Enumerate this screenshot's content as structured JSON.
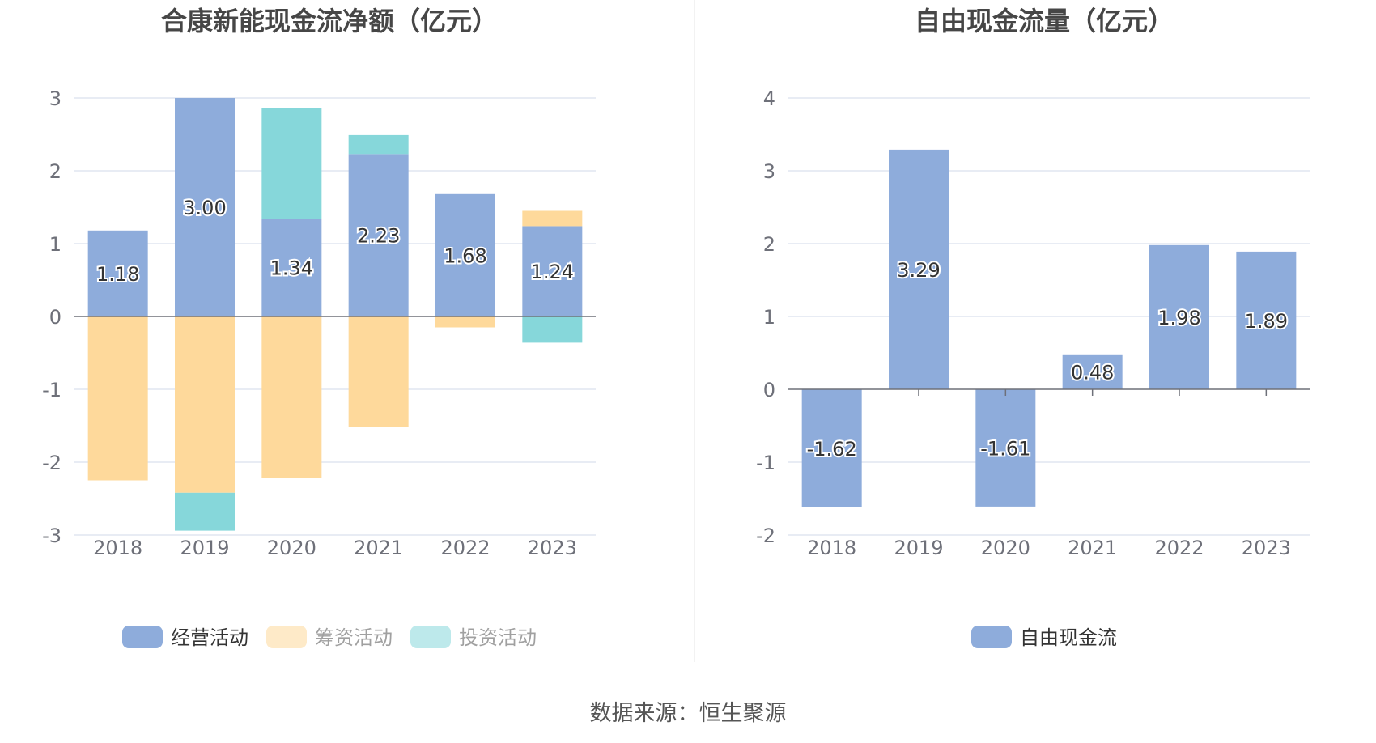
{
  "colors": {
    "operating": "#8eacdb",
    "financing": "#fed99b",
    "investing": "#86d7da",
    "free_cash_flow": "#8eacdb",
    "grid": "#e0e6f1",
    "axis": "#6e7079"
  },
  "footer": {
    "source": "数据来源：恒生聚源"
  },
  "chart_data": [
    {
      "type": "bar",
      "stacked": true,
      "title": "合康新能现金流净额（亿元）",
      "categories": [
        "2018",
        "2019",
        "2020",
        "2021",
        "2022",
        "2023"
      ],
      "ylim": [
        -3,
        3
      ],
      "yticks": [
        -3,
        -2,
        -1,
        0,
        1,
        2,
        3
      ],
      "grid": true,
      "legend_position": "bottom",
      "series": [
        {
          "name": "经营活动",
          "color_key": "operating",
          "values": [
            1.18,
            3.0,
            1.34,
            2.23,
            1.68,
            1.24
          ],
          "show_labels": true
        },
        {
          "name": "筹资活动",
          "color_key": "financing",
          "values": [
            -2.25,
            -2.42,
            -2.22,
            -1.52,
            -0.15,
            0.21
          ],
          "show_labels": false
        },
        {
          "name": "投资活动",
          "color_key": "investing",
          "values": [
            0,
            -0.52,
            1.52,
            0.26,
            0,
            -0.36
          ],
          "show_labels": false
        }
      ]
    },
    {
      "type": "bar",
      "stacked": false,
      "title": "自由现金流量（亿元）",
      "categories": [
        "2018",
        "2019",
        "2020",
        "2021",
        "2022",
        "2023"
      ],
      "ylim": [
        -2,
        4
      ],
      "yticks": [
        -2,
        -1,
        0,
        1,
        2,
        3,
        4
      ],
      "grid": true,
      "legend_position": "bottom",
      "series": [
        {
          "name": "自由现金流",
          "color_key": "free_cash_flow",
          "values": [
            -1.62,
            3.29,
            -1.61,
            0.48,
            1.98,
            1.89
          ],
          "show_labels": true
        }
      ]
    }
  ]
}
